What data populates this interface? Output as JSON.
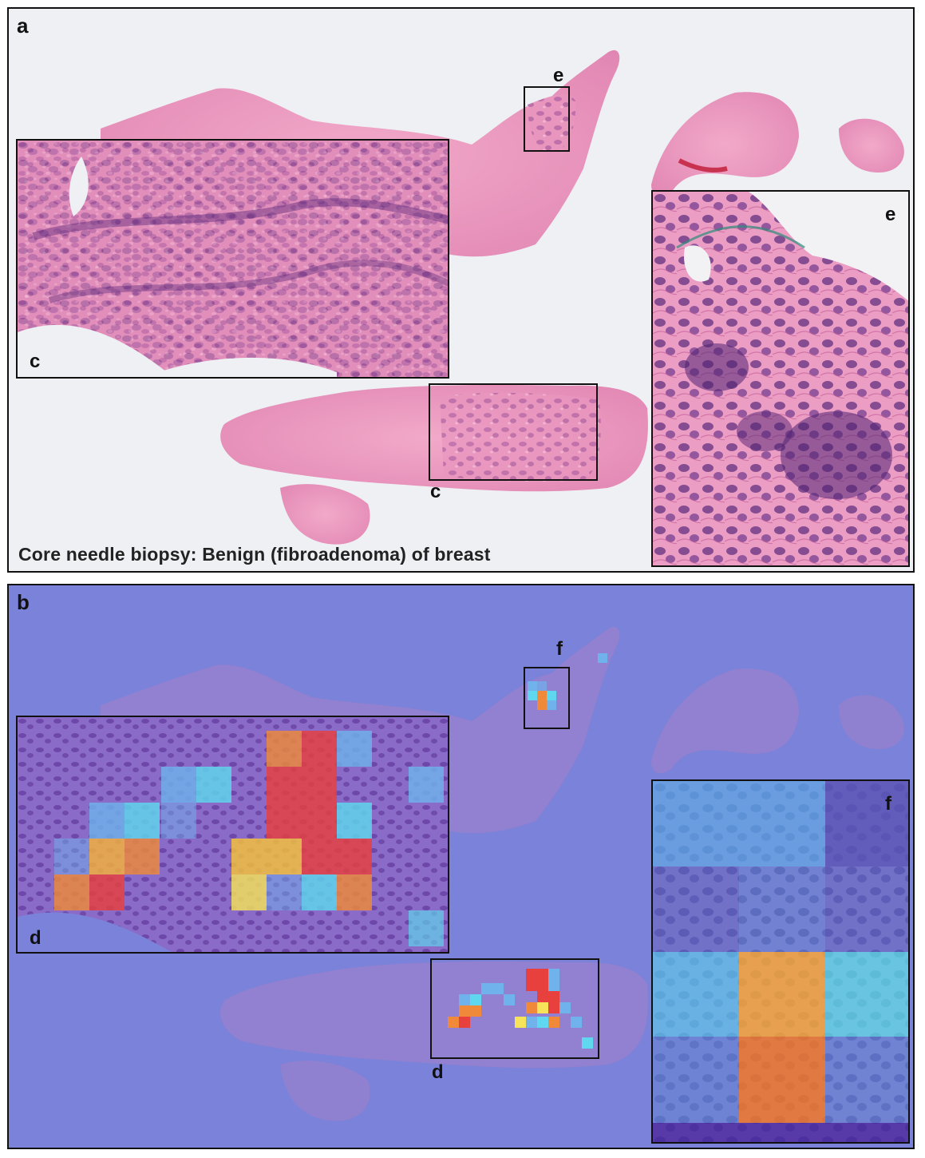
{
  "panel_a": {
    "letter": "a",
    "caption": "Core needle biopsy: Benign (fibroadenoma) of breast",
    "label_c_inset": "c",
    "label_c_region": "c",
    "label_e_inset": "e",
    "label_e_region": "e"
  },
  "panel_b": {
    "letter": "b",
    "label_d_inset": "d",
    "label_d_region": "d",
    "label_f_inset": "f",
    "label_f_region": "f"
  },
  "colors": {
    "tissue_pink": "#e58bb5",
    "tissue_purple": "#6b3b8e",
    "heat_background": "#7b82d9",
    "heat_red": "#e8403c",
    "heat_orange": "#f08a3a",
    "heat_yellow": "#f6e35a",
    "heat_cyan": "#5fd8ef",
    "heat_lightblue": "#6fb2ec"
  }
}
